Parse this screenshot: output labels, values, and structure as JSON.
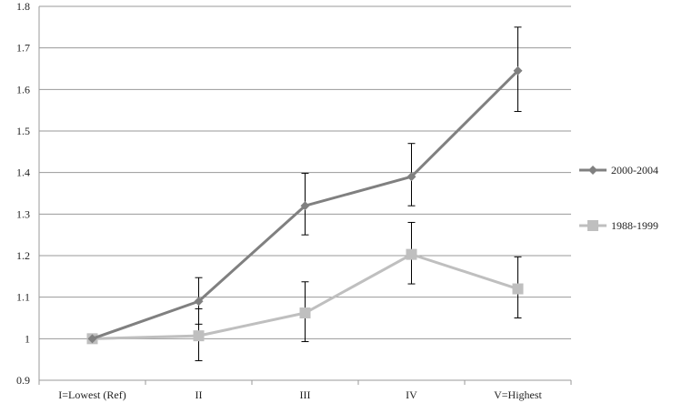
{
  "chart_data": {
    "type": "line",
    "categories": [
      "I=Lowest (Ref)",
      "II",
      "III",
      "IV",
      "V=Highest"
    ],
    "ylim": [
      0.9,
      1.8
    ],
    "yticks": [
      0.9,
      1,
      1.1,
      1.2,
      1.3,
      1.4,
      1.5,
      1.6,
      1.7,
      1.8
    ],
    "ytick_labels": [
      "0.9",
      "1",
      "1.1",
      "1.2",
      "1.3",
      "1.4",
      "1.5",
      "1.6",
      "1.7",
      "1.8"
    ],
    "grid": true,
    "legend_position": "right",
    "series": [
      {
        "name": "2000-2004",
        "marker": "diamond",
        "color": "#808080",
        "values": [
          1.0,
          1.09,
          1.32,
          1.39,
          1.645
        ],
        "error_low": [
          1.0,
          1.035,
          1.25,
          1.32,
          1.547
        ],
        "error_high": [
          1.0,
          1.147,
          1.398,
          1.47,
          1.75
        ]
      },
      {
        "name": "1988-1999",
        "marker": "square",
        "color": "#bfbfbf",
        "values": [
          1.0,
          1.007,
          1.062,
          1.203,
          1.12
        ],
        "error_low": [
          1.0,
          0.947,
          0.993,
          1.132,
          1.05
        ],
        "error_high": [
          1.0,
          1.072,
          1.137,
          1.28,
          1.197
        ]
      }
    ]
  }
}
